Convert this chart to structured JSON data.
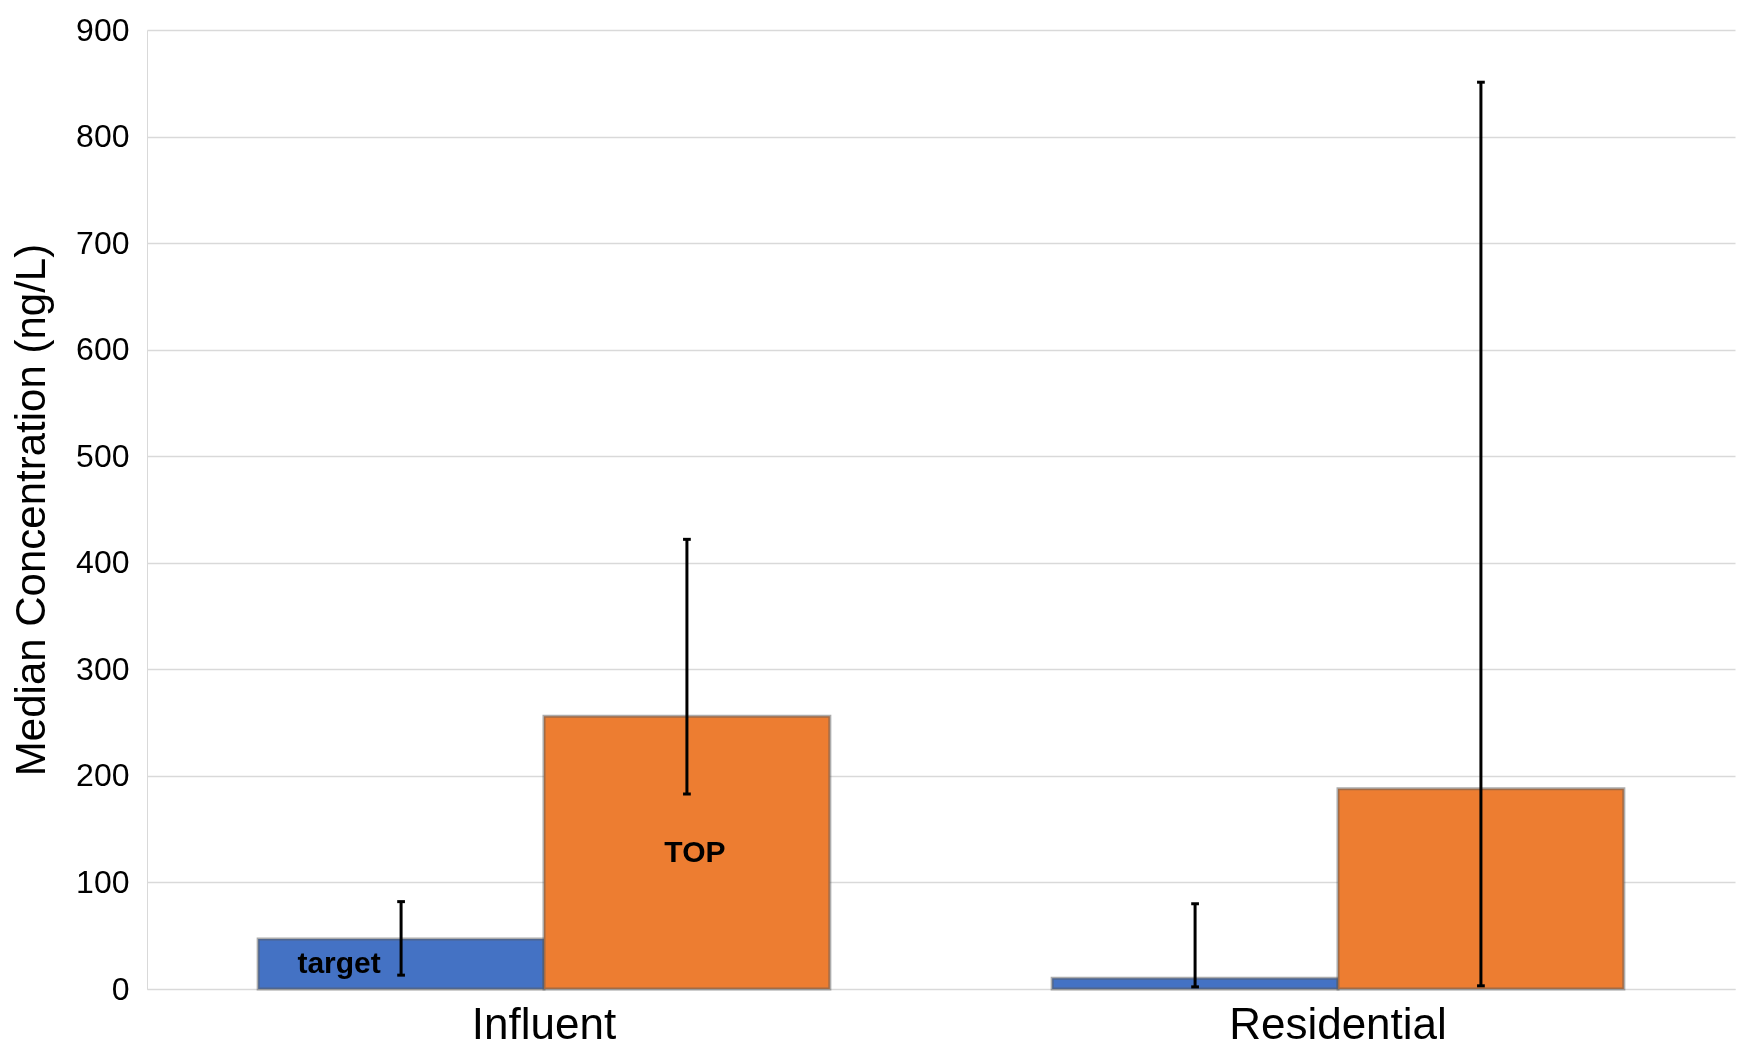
{
  "chart_data": {
    "type": "bar",
    "ylabel": "Median Concentration (ng/L)",
    "categories": [
      "Influent",
      "Residential"
    ],
    "series": [
      {
        "name": "target",
        "color": "#4472c4",
        "values": [
          47,
          10
        ],
        "errors": [
          [
            13,
            82
          ],
          [
            2,
            80
          ]
        ]
      },
      {
        "name": "TOP",
        "color": "#ed7d31",
        "values": [
          256,
          188
        ],
        "errors": [
          [
            183,
            422
          ],
          [
            3,
            851
          ]
        ]
      }
    ],
    "ylim": [
      0,
      900
    ],
    "yticks": [
      0,
      100,
      200,
      300,
      400,
      500,
      600,
      700,
      800,
      900
    ],
    "grid": "y"
  }
}
